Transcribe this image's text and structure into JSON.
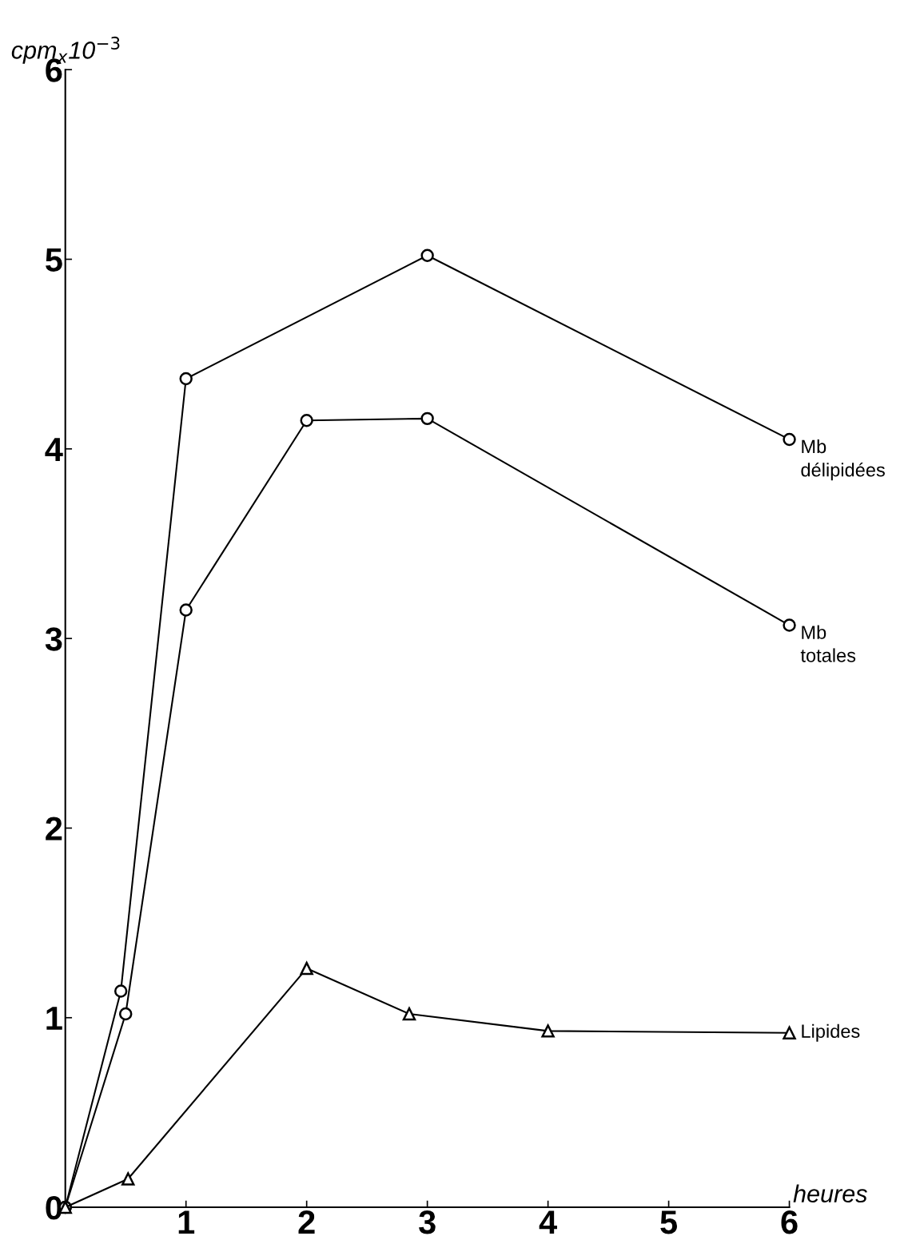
{
  "chart_data": {
    "type": "line",
    "xlabel": "heures",
    "ylabel": "cpm$_{x}$10$^{−3}$",
    "xlim": [
      0,
      6
    ],
    "xticks": [
      {
        "value": 0,
        "label": null
      },
      1,
      2,
      3,
      4,
      5,
      6
    ],
    "ylim": [
      0,
      6
    ],
    "yticks": [
      0,
      1,
      2,
      3,
      4,
      5,
      6
    ],
    "grid": false,
    "legend": false,
    "line_style": "solid",
    "series": [
      {
        "name": "Mb\ndélipidées",
        "color": "#000000",
        "marker": "circle",
        "x": [
          0,
          0.46,
          1.0,
          3.0,
          6.0
        ],
        "values": [
          0,
          1.14,
          4.37,
          5.02,
          4.05
        ]
      },
      {
        "name": "Mb\ntotales",
        "color": "#000000",
        "marker": "circle",
        "x": [
          0,
          0.5,
          1.0,
          2.0,
          3.0,
          6.0
        ],
        "values": [
          0,
          1.02,
          3.15,
          4.15,
          4.16,
          3.07
        ]
      },
      {
        "name": "Lipides",
        "color": "#000000",
        "marker": "triangle",
        "x": [
          0,
          0.52,
          2.0,
          2.85,
          4.0,
          6.0
        ],
        "values": [
          0,
          0.15,
          1.26,
          1.02,
          0.93,
          0.92
        ]
      }
    ]
  }
}
